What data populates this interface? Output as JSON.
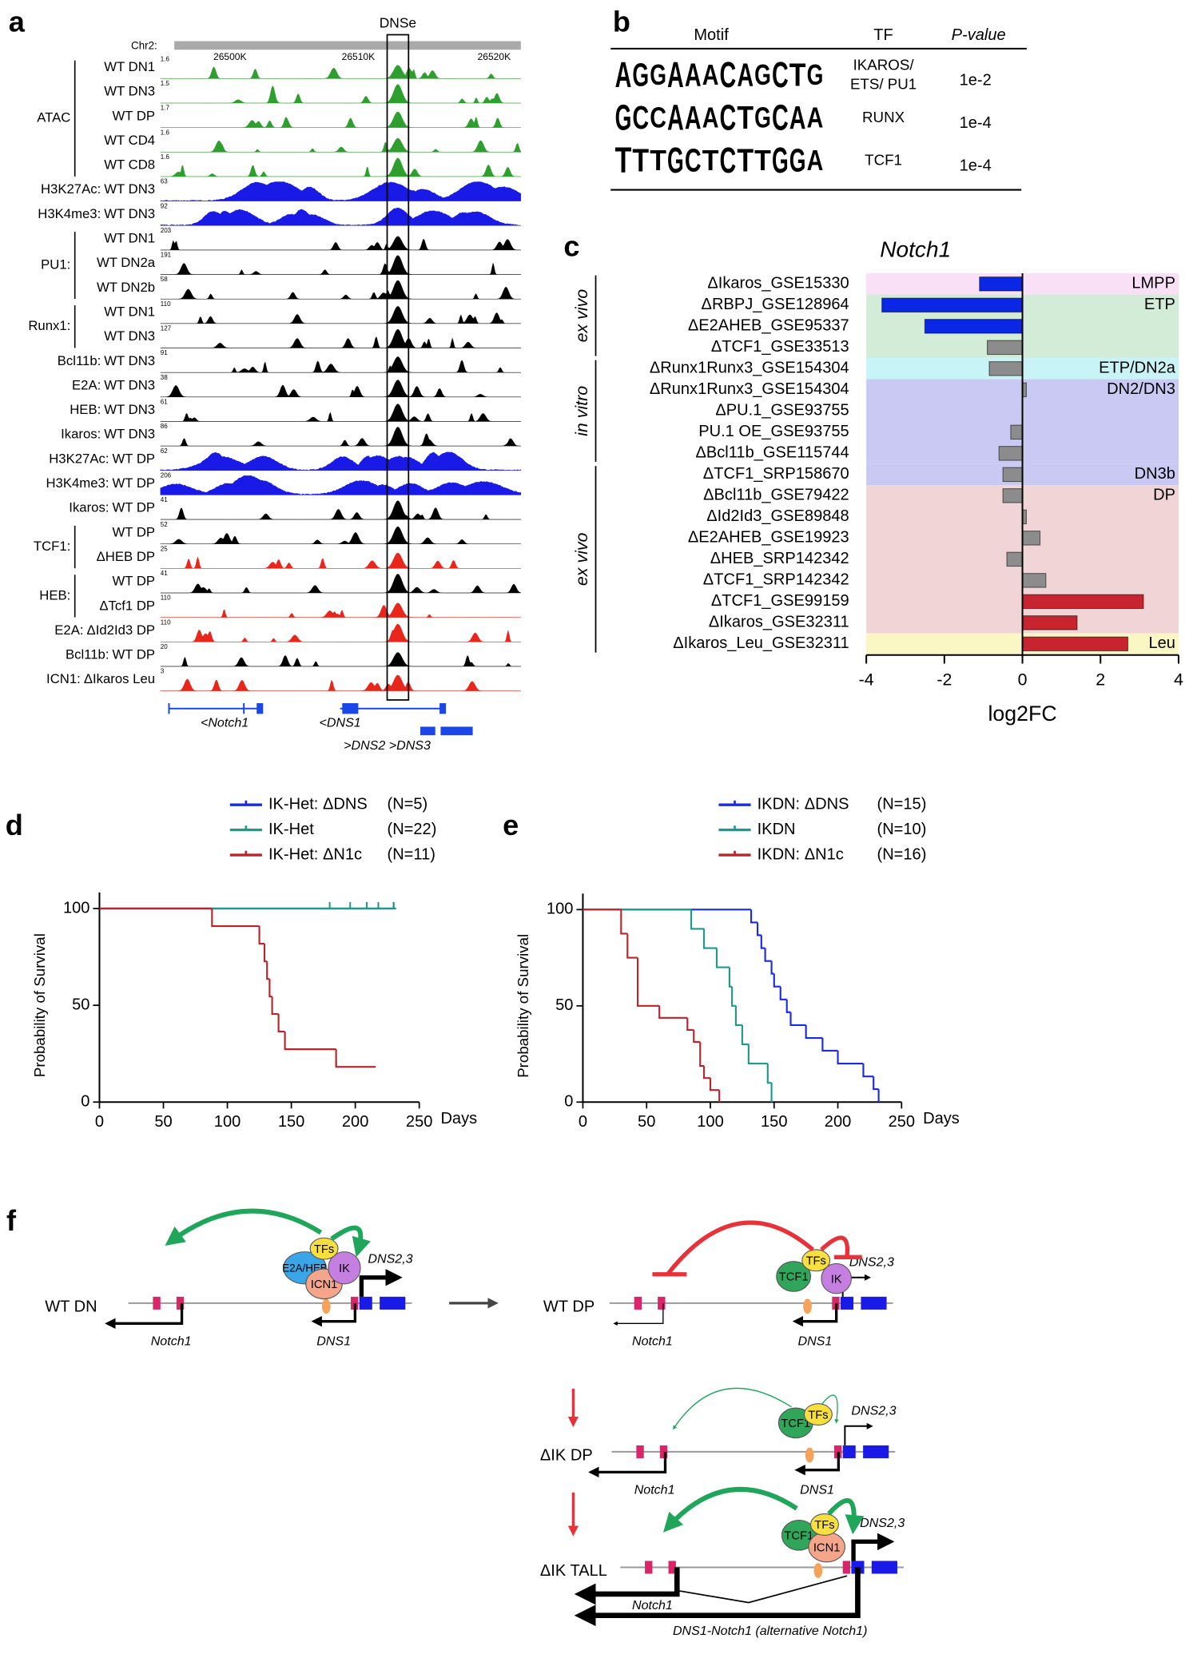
{
  "panel_a": {
    "label": "a",
    "highlight": "DNSe",
    "chr": "Chr2:",
    "coords": [
      "26500K",
      "26510K",
      "26520K"
    ],
    "groups": [
      {
        "name": "ATAC",
        "tracks": [
          {
            "name": "WT DN1",
            "scale": "1.6",
            "color": "#2e9e2e"
          },
          {
            "name": "WT DN3",
            "scale": "1.5",
            "color": "#2e9e2e"
          },
          {
            "name": "WT DP",
            "scale": "1.7",
            "color": "#2e9e2e"
          },
          {
            "name": "WT CD4",
            "scale": "1.6",
            "color": "#2e9e2e"
          },
          {
            "name": "WT CD8",
            "scale": "1.6",
            "color": "#2e9e2e"
          }
        ]
      },
      {
        "name": "H3K27Ac:",
        "tracks": [
          {
            "name": "WT DN3",
            "scale": "63",
            "color": "#1a1ae6"
          }
        ]
      },
      {
        "name": "H3K4me3:",
        "tracks": [
          {
            "name": "WT DN3",
            "scale": "92",
            "color": "#1a1ae6"
          }
        ]
      },
      {
        "name": "PU1:",
        "tracks": [
          {
            "name": "WT DN1",
            "scale": "203",
            "color": "#000000"
          },
          {
            "name": "WT DN2a",
            "scale": "191",
            "color": "#000000"
          },
          {
            "name": "WT DN2b",
            "scale": "58",
            "color": "#000000"
          }
        ]
      },
      {
        "name": "Runx1:",
        "tracks": [
          {
            "name": "WT DN1",
            "scale": "110",
            "color": "#000000"
          },
          {
            "name": "WT DN3",
            "scale": "127",
            "color": "#000000"
          }
        ]
      },
      {
        "name": "Bcl11b:",
        "tracks": [
          {
            "name": "WT DN3",
            "scale": "91",
            "color": "#000000"
          }
        ]
      },
      {
        "name": "E2A:",
        "tracks": [
          {
            "name": "WT DN3",
            "scale": "38",
            "color": "#000000"
          }
        ]
      },
      {
        "name": "HEB:",
        "tracks": [
          {
            "name": "WT DN3",
            "scale": "61",
            "color": "#000000"
          }
        ]
      },
      {
        "name": "Ikaros:",
        "tracks": [
          {
            "name": "WT DN3",
            "scale": "86",
            "color": "#000000"
          }
        ]
      },
      {
        "name": "H3K27Ac:",
        "tracks": [
          {
            "name": "WT DP",
            "scale": "62",
            "color": "#1a1ae6"
          }
        ]
      },
      {
        "name": "H3K4me3:",
        "tracks": [
          {
            "name": "WT DP",
            "scale": "206",
            "color": "#1a1ae6"
          }
        ]
      },
      {
        "name": "Ikaros:",
        "tracks": [
          {
            "name": "WT DP",
            "scale": "41",
            "color": "#000000"
          }
        ]
      },
      {
        "name": "TCF1:",
        "tracks": [
          {
            "name": "WT DP",
            "scale": "52",
            "color": "#000000"
          },
          {
            "name": "ΔHEB DP",
            "scale": "25",
            "color": "#e8261c"
          }
        ]
      },
      {
        "name": "HEB:",
        "tracks": [
          {
            "name": "WT DP",
            "scale": "41",
            "color": "#000000"
          },
          {
            "name": "ΔTcf1 DP",
            "scale": "110",
            "color": "#e8261c"
          }
        ]
      },
      {
        "name": "E2A:",
        "tracks": [
          {
            "name": "ΔId2Id3 DP",
            "scale": "110",
            "color": "#e8261c"
          }
        ]
      },
      {
        "name": "Bcl11b:",
        "tracks": [
          {
            "name": "WT DP",
            "scale": "20",
            "color": "#000000"
          }
        ]
      },
      {
        "name": "ICN1:",
        "tracks": [
          {
            "name": "ΔIkaros Leu",
            "scale": "3",
            "color": "#e8261c"
          }
        ]
      }
    ],
    "genes": [
      "<Notch1",
      "<DNS1",
      ">DNS2 >DNS3"
    ]
  },
  "panel_b": {
    "label": "b",
    "headers": [
      "Motif",
      "TF",
      "P-value"
    ],
    "rows": [
      {
        "logo": [
          "A",
          "G",
          "G",
          "A",
          "A",
          "A",
          "C",
          "A",
          "G",
          "C",
          "T",
          "G"
        ],
        "tf": [
          "IKAROS/",
          "ETS/ PU1"
        ],
        "p": "1e-2"
      },
      {
        "logo": [
          "G",
          "C",
          "C",
          "A",
          "A",
          "A",
          "C",
          "T",
          "G",
          "C",
          "A",
          "A"
        ],
        "tf": [
          "RUNX"
        ],
        "p": "1e-4"
      },
      {
        "logo": [
          "T",
          "T",
          "T",
          "G",
          "C",
          "T",
          "C",
          "T",
          "T",
          "G",
          "G",
          "A"
        ],
        "tf": [
          "TCF1"
        ],
        "p": "1e-4"
      }
    ]
  },
  "chart_data": [
    {
      "type": "hbar",
      "label": "c",
      "title": "Notch1",
      "x_label": "log2FC",
      "categories": [
        "ΔIkaros_GSE15330",
        "ΔRBPJ_GSE128964",
        "ΔE2AHEB_GSE95337",
        "ΔTCF1_GSE33513",
        "ΔRunx1Runx3_GSE154304",
        "ΔRunx1Runx3_GSE154304",
        "ΔPU.1_GSE93755",
        "PU.1 OE_GSE93755",
        "ΔBcl11b_GSE115744",
        "ΔTCF1_SRP158670",
        "ΔBcl11b_GSE79422",
        "ΔId2Id3_GSE89848",
        "ΔE2AHEB_GSE19923",
        "ΔHEB_SRP142342",
        "ΔTCF1_SRP142342",
        "ΔTCF1_GSE99159",
        "ΔIkaros_GSE32311",
        "ΔIkaros_Leu_GSE32311"
      ],
      "values": [
        -1.1,
        -3.6,
        -2.5,
        -0.9,
        -0.85,
        0.1,
        0,
        -0.3,
        -0.6,
        -0.5,
        -0.5,
        0.1,
        0.45,
        -0.4,
        0.6,
        3.1,
        1.4,
        2.7
      ],
      "colors": [
        "#0a27e6",
        "#0a27e6",
        "#0a27e6",
        "#8c8c8c",
        "#8c8c8c",
        "#8c8c8c",
        "#8c8c8c",
        "#8c8c8c",
        "#8c8c8c",
        "#8c8c8c",
        "#8c8c8c",
        "#8c8c8c",
        "#8c8c8c",
        "#8c8c8c",
        "#8c8c8c",
        "#c8242f",
        "#c8242f",
        "#c8242f"
      ],
      "xlim": [
        -4,
        4
      ],
      "xticks": [
        -4,
        -2,
        0,
        2,
        4
      ],
      "bands": [
        {
          "label": "LMPP",
          "rows": [
            0,
            0
          ],
          "color": "#f9e0f7"
        },
        {
          "label": "ETP",
          "rows": [
            1,
            3
          ],
          "color": "#d2ecd8"
        },
        {
          "label": "ETP/DN2a",
          "rows": [
            4,
            4
          ],
          "color": "#c8f4f7"
        },
        {
          "label": "DN2/DN3",
          "rows": [
            5,
            8
          ],
          "color": "#c9c9f3"
        },
        {
          "label": "DN3b",
          "rows": [
            9,
            9
          ],
          "color": "#c9c9f3"
        },
        {
          "label": "DP",
          "rows": [
            10,
            16
          ],
          "color": "#f1d4d6"
        },
        {
          "label": "Leu",
          "rows": [
            17,
            17
          ],
          "color": "#fbf7c5"
        }
      ],
      "sides": [
        {
          "label": "ex vivo",
          "rows": [
            0,
            3
          ]
        },
        {
          "label": "in vitro",
          "rows": [
            4,
            8
          ]
        },
        {
          "label": "ex vivo",
          "rows": [
            9,
            17
          ]
        }
      ]
    },
    {
      "type": "survival",
      "label": "d",
      "x_label": "Days",
      "y_label": "Probability of Survival",
      "xlim": [
        0,
        250
      ],
      "xticks": [
        0,
        50,
        100,
        150,
        200,
        250
      ],
      "ylim": [
        0,
        100
      ],
      "yticks": [
        0,
        50,
        100
      ],
      "series": [
        {
          "name": "IK-Het: ΔDNS",
          "n_label": "(N=5)",
          "color": "#1a2be0",
          "x": [
            0,
            230
          ],
          "values": [
            100,
            100
          ],
          "censored": [
            230
          ]
        },
        {
          "name": "IK-Het",
          "n_label": "(N=22)",
          "color": "#1c9a8e",
          "x": [
            0,
            232
          ],
          "values": [
            100,
            100
          ],
          "censored": [
            180,
            196,
            209,
            218,
            230
          ]
        },
        {
          "name": "IK-Het: ΔN1c",
          "n_label": "(N=11)",
          "color": "#b8252b",
          "x": [
            0,
            88,
            125,
            129,
            131,
            133,
            135,
            140,
            145,
            185,
            216
          ],
          "values": [
            100,
            90.9,
            81.8,
            72.7,
            63.6,
            54.5,
            45.5,
            36.4,
            27.3,
            18.2,
            18.2
          ],
          "censored": [
            185
          ]
        }
      ]
    },
    {
      "type": "survival",
      "label": "e",
      "x_label": "Days",
      "y_label": "Probability of Survival",
      "xlim": [
        0,
        250
      ],
      "xticks": [
        0,
        50,
        100,
        150,
        200,
        250
      ],
      "ylim": [
        0,
        100
      ],
      "yticks": [
        0,
        50,
        100
      ],
      "series": [
        {
          "name": "IKDN: ΔDNS",
          "n_label": "(N=15)",
          "color": "#1a2be0",
          "x": [
            0,
            132,
            137,
            140,
            143,
            148,
            150,
            155,
            160,
            163,
            175,
            188,
            200,
            220,
            228,
            232
          ],
          "values": [
            100,
            93.3,
            86.7,
            80,
            73.3,
            66.7,
            60,
            53.3,
            46.7,
            40,
            33.3,
            26.7,
            20,
            13.3,
            6.7,
            0
          ],
          "censored": []
        },
        {
          "name": "IKDN",
          "n_label": "(N=10)",
          "color": "#1c9a8e",
          "x": [
            0,
            85,
            95,
            105,
            115,
            117,
            120,
            125,
            130,
            145,
            148
          ],
          "values": [
            100,
            90,
            80,
            70,
            60,
            50,
            40,
            30,
            20,
            10,
            0
          ],
          "censored": []
        },
        {
          "name": "IKDN: ΔN1c",
          "n_label": "(N=16)",
          "color": "#b8252b",
          "x": [
            0,
            30,
            35,
            43,
            60,
            82,
            87,
            92,
            95,
            100,
            107
          ],
          "values": [
            100,
            87.5,
            75,
            50,
            43.75,
            37.5,
            31.25,
            18.75,
            12.5,
            6.25,
            0
          ],
          "censored": []
        }
      ]
    }
  ],
  "panel_f": {
    "label": "f",
    "states": [
      {
        "name": "WT DN",
        "proteins": [
          {
            "name": "E2A/HEB",
            "color": "#3aa6e8"
          },
          {
            "name": "ICN1",
            "color": "#f4a58a"
          },
          {
            "name": "IK",
            "color": "#c57fe0"
          },
          {
            "name": "TFs",
            "color": "#f7df3f"
          }
        ],
        "promoter": "DNS2,3",
        "gene": "Notch1",
        "dns1": "DNS1"
      },
      {
        "name": "WT DP",
        "proteins": [
          {
            "name": "TCF1",
            "color": "#2fa65a"
          },
          {
            "name": "IK",
            "color": "#c57fe0"
          },
          {
            "name": "TFs",
            "color": "#f7df3f"
          }
        ],
        "promoter": "DNS2,3",
        "gene": "Notch1",
        "dns1": "DNS1"
      },
      {
        "name": "ΔIK DP",
        "proteins": [
          {
            "name": "TCF1",
            "color": "#2fa65a"
          },
          {
            "name": "TFs",
            "color": "#f7df3f"
          }
        ],
        "promoter": "DNS2,3",
        "gene": "Notch1",
        "dns1": "DNS1"
      },
      {
        "name": "ΔIK TALL",
        "proteins": [
          {
            "name": "TCF1",
            "color": "#2fa65a"
          },
          {
            "name": "ICN1",
            "color": "#f4a58a"
          },
          {
            "name": "TFs",
            "color": "#f7df3f"
          }
        ],
        "promoter": "DNS2,3",
        "gene": "Notch1",
        "dns1": "DNS1-Notch1 (alternative Notch1)"
      }
    ]
  }
}
